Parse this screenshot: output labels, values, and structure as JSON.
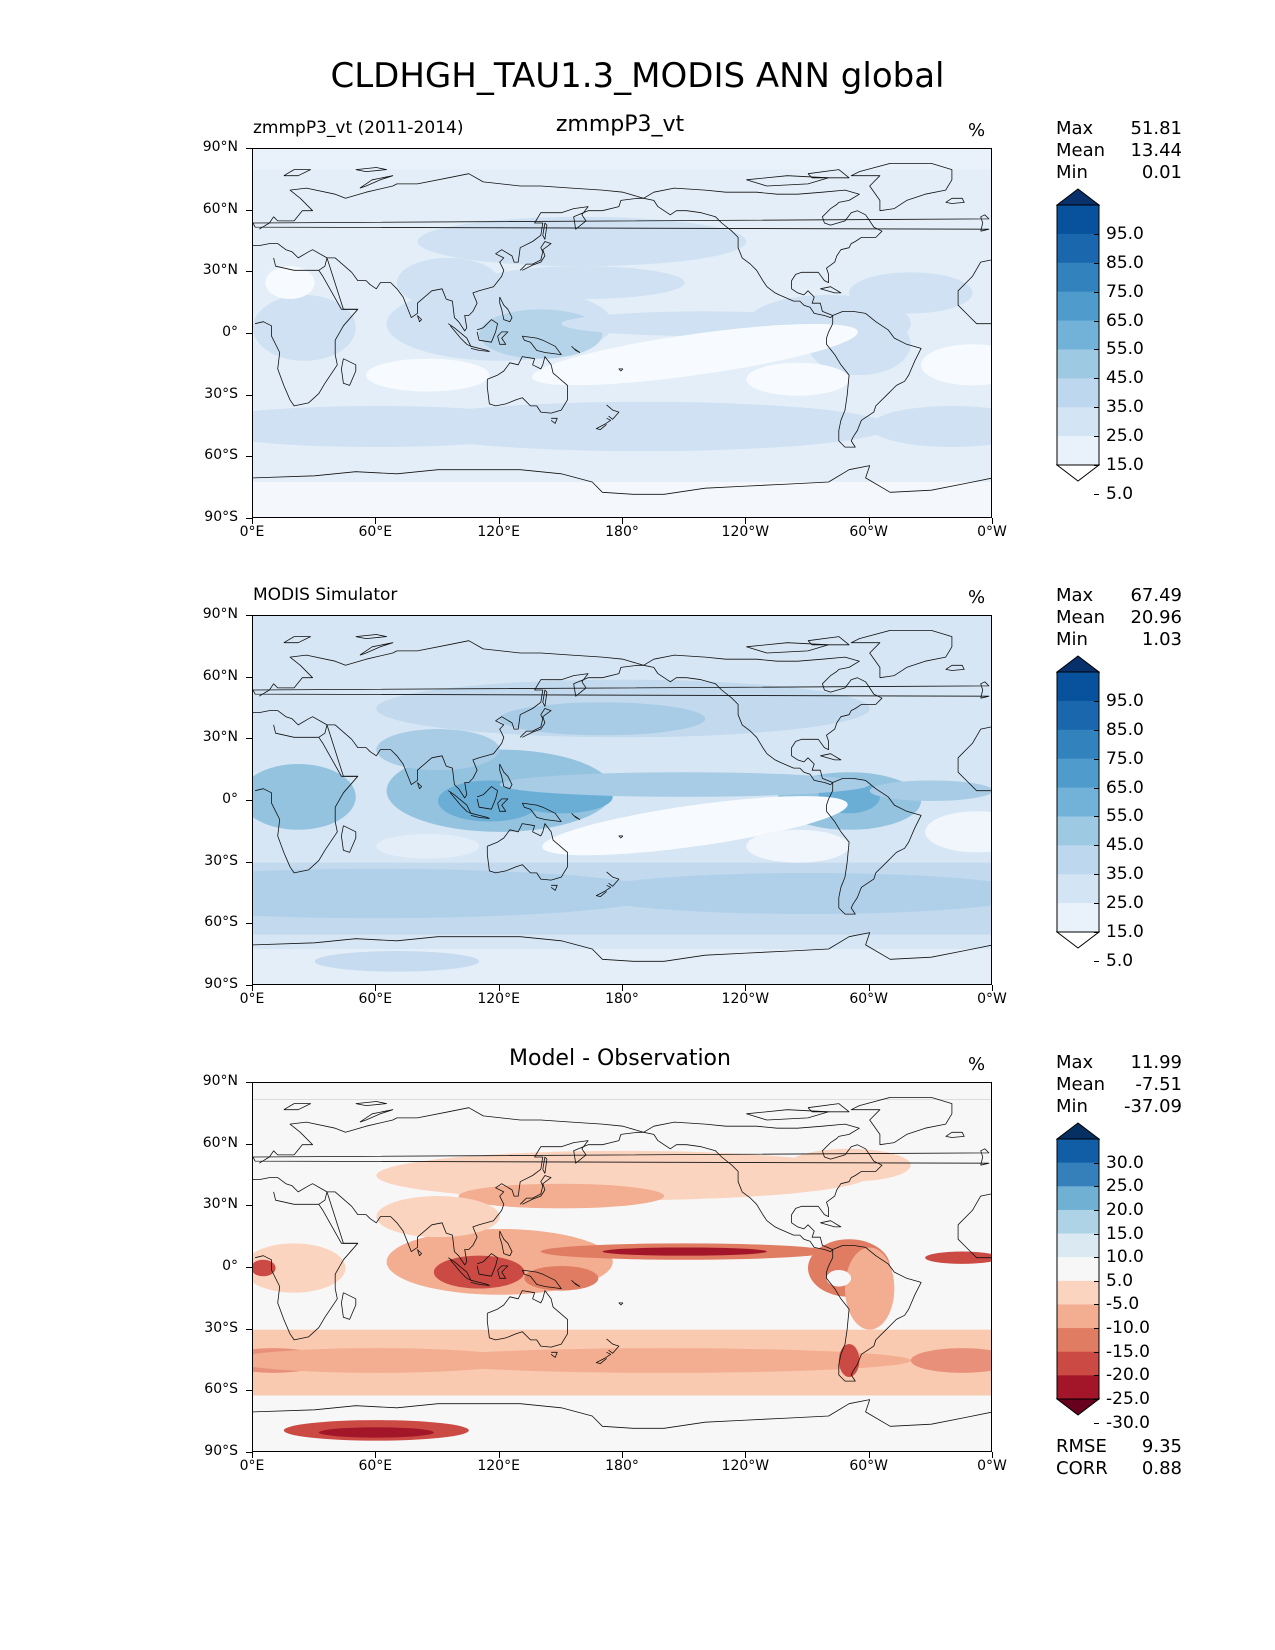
{
  "figure_title": "CLDHGH_TAU1.3_MODIS ANN global",
  "lat_labels": [
    "90°N",
    "60°N",
    "30°N",
    "0°",
    "30°S",
    "60°S",
    "90°S"
  ],
  "lon_labels": [
    "0°E",
    "60°E",
    "120°E",
    "180°",
    "120°W",
    "60°W",
    "0°W"
  ],
  "panels": [
    {
      "id": "model",
      "title_left": "zmmpP3_vt (2011-2014)",
      "title_center": "zmmpP3_vt",
      "units": "%",
      "stats": [
        {
          "label": "Max",
          "value": "51.81"
        },
        {
          "label": "Mean",
          "value": "13.44"
        },
        {
          "label": "Min",
          "value": "0.01"
        }
      ],
      "colorbar_labels": [
        "95.0",
        "85.0",
        "75.0",
        "65.0",
        "55.0",
        "45.0",
        "35.0",
        "25.0",
        "15.0",
        "5.0"
      ],
      "colorbar_colors": [
        "#ffffff",
        "#e9f2fb",
        "#d3e4f4",
        "#bcd7ee",
        "#9dc9e2",
        "#72b2d8",
        "#4f9ccc",
        "#3282bd",
        "#1a67ae",
        "#08519c",
        "#08306b"
      ]
    },
    {
      "id": "obs",
      "title_left": "MODIS Simulator",
      "title_center": "",
      "units": "%",
      "stats": [
        {
          "label": "Max",
          "value": "67.49"
        },
        {
          "label": "Mean",
          "value": "20.96"
        },
        {
          "label": "Min",
          "value": "1.03"
        }
      ],
      "colorbar_labels": [
        "95.0",
        "85.0",
        "75.0",
        "65.0",
        "55.0",
        "45.0",
        "35.0",
        "25.0",
        "15.0",
        "5.0"
      ],
      "colorbar_colors": [
        "#ffffff",
        "#e9f2fb",
        "#d3e4f4",
        "#bcd7ee",
        "#9dc9e2",
        "#72b2d8",
        "#4f9ccc",
        "#3282bd",
        "#1a67ae",
        "#08519c",
        "#08306b"
      ]
    },
    {
      "id": "diff",
      "title_left": "",
      "title_center": "Model - Observation",
      "units": "%",
      "stats": [
        {
          "label": "Max",
          "value": "11.99"
        },
        {
          "label": "Mean",
          "value": "-7.51"
        },
        {
          "label": "Min",
          "value": "-37.09"
        }
      ],
      "colorbar_labels": [
        "30.0",
        "25.0",
        "20.0",
        "15.0",
        "10.0",
        "5.0",
        "-5.0",
        "-10.0",
        "-15.0",
        "-20.0",
        "-25.0",
        "-30.0"
      ],
      "colorbar_colors": [
        "#67001f",
        "#a3162a",
        "#cb4a43",
        "#e07c62",
        "#f3ad90",
        "#fbd4c0",
        "#f7f7f7",
        "#dbeaf2",
        "#aed3e6",
        "#6fb0d3",
        "#3580bb",
        "#125ea6",
        "#053061"
      ],
      "metrics": [
        {
          "label": "RMSE",
          "value": "9.35"
        },
        {
          "label": "CORR",
          "value": "0.88"
        }
      ]
    }
  ]
}
